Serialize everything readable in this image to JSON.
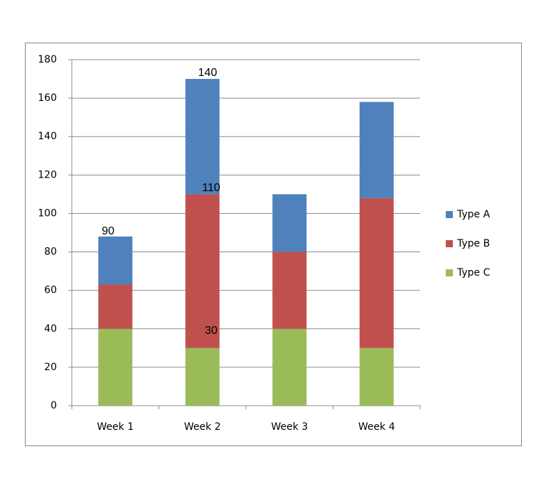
{
  "chart_data": {
    "type": "bar",
    "stacked": true,
    "categories": [
      "Week 1",
      "Week 2",
      "Week 3",
      "Week 4"
    ],
    "series": [
      {
        "name": "Type A",
        "color": "#4f81bd",
        "values": [
          25,
          60,
          30,
          50
        ]
      },
      {
        "name": "Type B",
        "color": "#c0504d",
        "values": [
          23,
          80,
          40,
          78
        ]
      },
      {
        "name": "Type C",
        "color": "#9bbb59",
        "values": [
          40,
          30,
          40,
          30
        ]
      }
    ],
    "annotations": [
      "90",
      "140",
      "110",
      "30"
    ],
    "ylim": [
      0,
      180
    ],
    "yticks": [
      0,
      20,
      40,
      60,
      80,
      100,
      120,
      140,
      160,
      180
    ],
    "grid": true,
    "legend": "right"
  }
}
